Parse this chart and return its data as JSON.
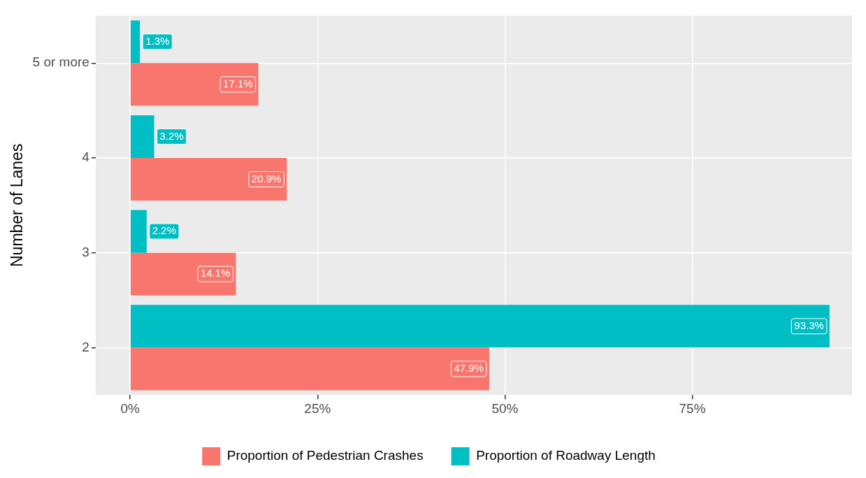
{
  "chart_data": {
    "type": "bar",
    "orientation": "horizontal",
    "ylabel": "Number of Lanes",
    "categories": [
      "5 or more",
      "4",
      "3",
      "2"
    ],
    "series": [
      {
        "name": "Proportion of Pedestrian Crashes",
        "color": "#f8766d",
        "values": [
          17.1,
          20.9,
          14.1,
          47.9
        ],
        "value_labels": [
          "17.1%",
          "20.9%",
          "14.1%",
          "47.9%"
        ]
      },
      {
        "name": "Proportion of Roadway Length",
        "color": "#00bfc4",
        "values": [
          1.3,
          3.2,
          2.2,
          93.3
        ],
        "value_labels": [
          "1.3%",
          "3.2%",
          "2.2%",
          "93.3%"
        ]
      }
    ],
    "xlim": [
      -4.6,
      96.3
    ],
    "xticks": [
      {
        "value": 0,
        "label": "0%"
      },
      {
        "value": 25,
        "label": "25%"
      },
      {
        "value": 50,
        "label": "50%"
      },
      {
        "value": 75,
        "label": "75%"
      }
    ],
    "grid": true,
    "legend": "bottom"
  }
}
